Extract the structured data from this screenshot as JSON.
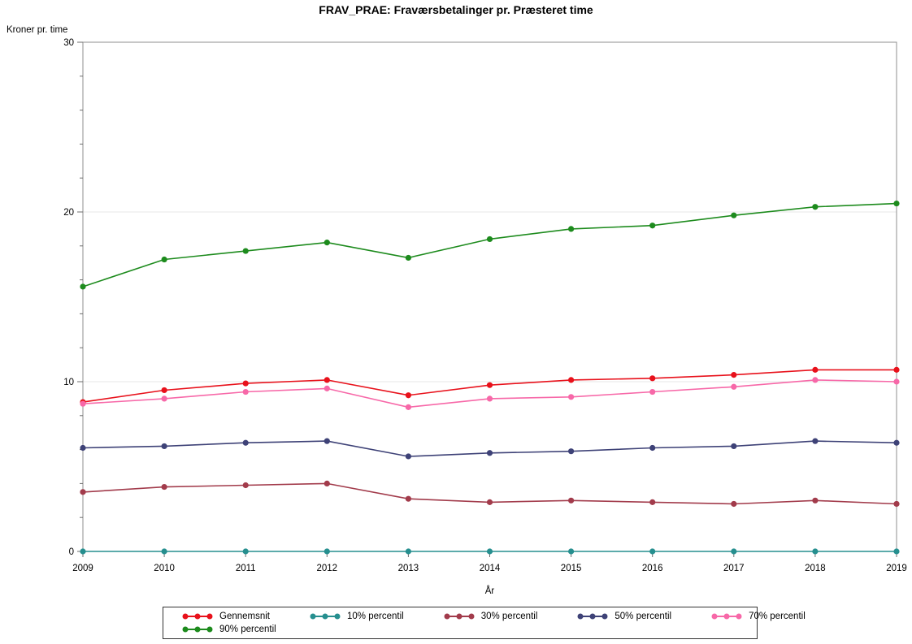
{
  "title": "FRAV_PRAE: Fraværsbetalinger pr. Præsteret time",
  "chart_data": {
    "type": "line",
    "title": "FRAV_PRAE: Fraværsbetalinger pr. Præsteret time",
    "xlabel": "År",
    "ylabel": "Kroner pr. time",
    "x": [
      2009,
      2010,
      2011,
      2012,
      2013,
      2014,
      2015,
      2016,
      2017,
      2018,
      2019
    ],
    "ylim": [
      0,
      30
    ],
    "yticks": [
      0,
      10,
      20,
      30
    ],
    "y_minor_tick_step": 2,
    "grid": "horizontal-light",
    "legend_position": "bottom",
    "series": [
      {
        "name": "Gennemsnit",
        "color": "#e8111b",
        "values": [
          8.8,
          9.5,
          9.9,
          10.1,
          9.2,
          9.8,
          10.1,
          10.2,
          10.4,
          10.7,
          10.7
        ]
      },
      {
        "name": "10% percentil",
        "color": "#268f8f",
        "values": [
          0,
          0,
          0,
          0,
          0,
          0,
          0,
          0,
          0,
          0,
          0
        ]
      },
      {
        "name": "30% percentil",
        "color": "#a23b4b",
        "values": [
          3.5,
          3.8,
          3.9,
          4.0,
          3.1,
          2.9,
          3.0,
          2.9,
          2.8,
          3.0,
          2.8
        ]
      },
      {
        "name": "50% percentil",
        "color": "#3e4277",
        "values": [
          6.1,
          6.2,
          6.4,
          6.5,
          5.6,
          5.8,
          5.9,
          6.1,
          6.2,
          6.5,
          6.4
        ]
      },
      {
        "name": "70% percentil",
        "color": "#f768a8",
        "values": [
          8.7,
          9.0,
          9.4,
          9.6,
          8.5,
          9.0,
          9.1,
          9.4,
          9.7,
          10.1,
          10.0
        ]
      },
      {
        "name": "90% percentil",
        "color": "#1d8b1d",
        "values": [
          15.6,
          17.2,
          17.7,
          18.2,
          17.3,
          18.4,
          19.0,
          19.2,
          19.8,
          20.3,
          20.5
        ]
      }
    ],
    "axis_color": "#8f8f8f",
    "tick_color": "#6e6e6e",
    "gridline_color": "#e7e7e7",
    "text_color": "#000000"
  }
}
